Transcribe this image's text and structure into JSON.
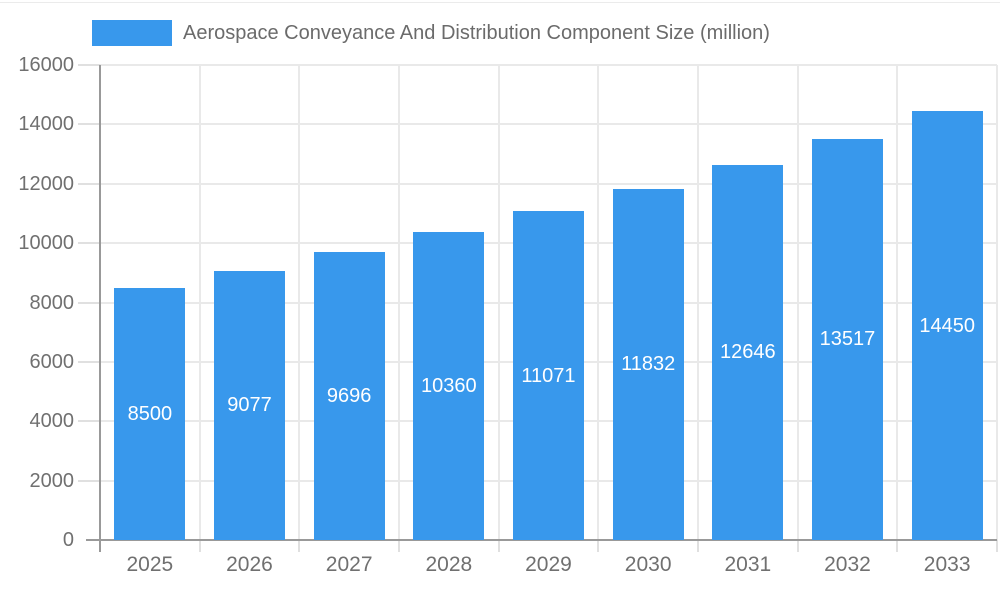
{
  "page": {
    "background": "#FFFFFF"
  },
  "colors": {
    "bar": "#3898EC",
    "axis_line": "#999999",
    "grid_line": "#E9E9E9",
    "tick_mark": "#E0E0E0",
    "axis_text": "#707070",
    "legend_text": "#6B6B6B",
    "bar_value_text": "#FFFFFF"
  },
  "legend": {
    "label": "Aerospace Conveyance And Distribution Component Size (million)"
  },
  "chart_data": {
    "type": "bar",
    "title": "Aerospace Conveyance And Distribution Component Size (million)",
    "categories": [
      "2025",
      "2026",
      "2027",
      "2028",
      "2029",
      "2030",
      "2031",
      "2032",
      "2033"
    ],
    "values": [
      8500,
      9077,
      9696,
      10360,
      11071,
      11832,
      12646,
      13517,
      14450
    ],
    "series": [
      {
        "name": "Aerospace Conveyance And Distribution Component Size (million)",
        "values": [
          8500,
          9077,
          9696,
          10360,
          11071,
          11832,
          12646,
          13517,
          14450
        ]
      }
    ],
    "xlabel": "",
    "ylabel": "",
    "ylim": [
      0,
      16000
    ],
    "yticks": [
      0,
      2000,
      4000,
      6000,
      8000,
      10000,
      12000,
      14000,
      16000
    ],
    "ytick_step": 2000,
    "grid": true,
    "legend_position": "top-left",
    "value_labels_position": "inside-center"
  }
}
